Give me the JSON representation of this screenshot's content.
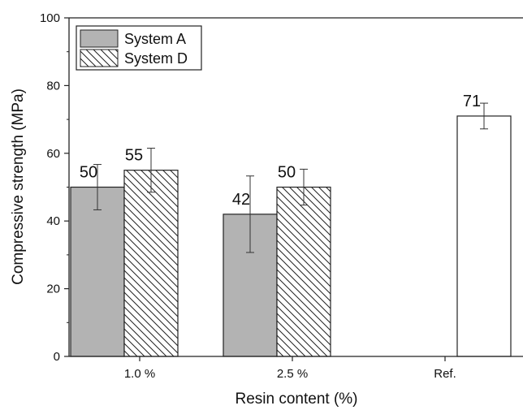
{
  "chart_data": {
    "type": "bar",
    "xlabel": "Resin content (%)",
    "ylabel": "Compressive strength (MPa)",
    "ylim": [
      0,
      100
    ],
    "yticks": [
      0,
      20,
      40,
      60,
      80,
      100
    ],
    "categories": [
      "1.0 %",
      "2.5 %",
      "Ref."
    ],
    "legend_position": "top-left",
    "grid": false,
    "series": [
      {
        "name": "System A",
        "style": "solid-gray",
        "color": "#b3b3b3",
        "values": [
          50,
          42,
          null
        ],
        "errors": [
          6.7,
          11.3,
          null
        ],
        "labels": [
          "50",
          "42",
          ""
        ]
      },
      {
        "name": "System D",
        "style": "hatched",
        "color": "#ffffff",
        "values": [
          55,
          50,
          null
        ],
        "errors": [
          6.5,
          5.3,
          null
        ],
        "labels": [
          "55",
          "50",
          ""
        ]
      },
      {
        "name": "",
        "style": "white",
        "color": "#ffffff",
        "values": [
          null,
          null,
          71
        ],
        "errors": [
          null,
          null,
          3.8
        ],
        "labels": [
          "",
          "",
          "71"
        ]
      }
    ]
  }
}
